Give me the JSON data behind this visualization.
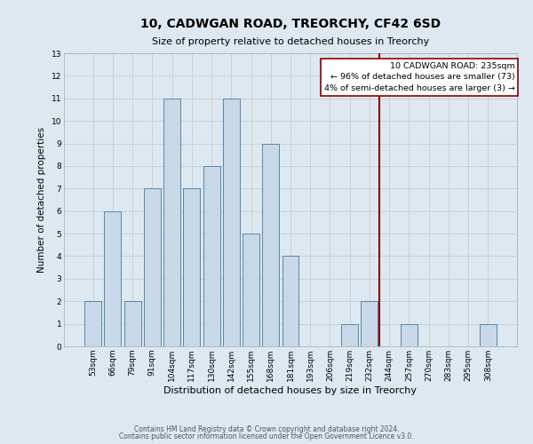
{
  "title": "10, CADWGAN ROAD, TREORCHY, CF42 6SD",
  "subtitle": "Size of property relative to detached houses in Treorchy",
  "xlabel": "Distribution of detached houses by size in Treorchy",
  "ylabel": "Number of detached properties",
  "footer_line1": "Contains HM Land Registry data © Crown copyright and database right 2024.",
  "footer_line2": "Contains public sector information licensed under the Open Government Licence v3.0.",
  "bins": [
    "53sqm",
    "66sqm",
    "79sqm",
    "91sqm",
    "104sqm",
    "117sqm",
    "130sqm",
    "142sqm",
    "155sqm",
    "168sqm",
    "181sqm",
    "193sqm",
    "206sqm",
    "219sqm",
    "232sqm",
    "244sqm",
    "257sqm",
    "270sqm",
    "283sqm",
    "295sqm",
    "308sqm"
  ],
  "bar_heights": [
    2,
    6,
    2,
    7,
    11,
    7,
    8,
    11,
    5,
    9,
    4,
    0,
    0,
    1,
    2,
    0,
    1,
    0,
    0,
    0,
    1
  ],
  "bar_color": "#c8d8e8",
  "bar_edgecolor": "#5588aa",
  "grid_color": "#cccccc",
  "background_color": "#dde8f0",
  "vline_x": 14.5,
  "vline_color": "#8b0000",
  "annotation_title": "10 CADWGAN ROAD: 235sqm",
  "annotation_line1": "← 96% of detached houses are smaller (73)",
  "annotation_line2": "4% of semi-detached houses are larger (3) →",
  "annotation_box_color": "#ffffff",
  "annotation_box_edgecolor": "#8b0000",
  "ylim": [
    0,
    13
  ],
  "yticks": [
    0,
    1,
    2,
    3,
    4,
    5,
    6,
    7,
    8,
    9,
    10,
    11,
    12,
    13
  ],
  "title_fontsize": 10,
  "subtitle_fontsize": 8,
  "xlabel_fontsize": 8,
  "ylabel_fontsize": 7.5,
  "tick_fontsize": 6.5,
  "annot_fontsize": 6.8,
  "footer_fontsize": 5.5
}
